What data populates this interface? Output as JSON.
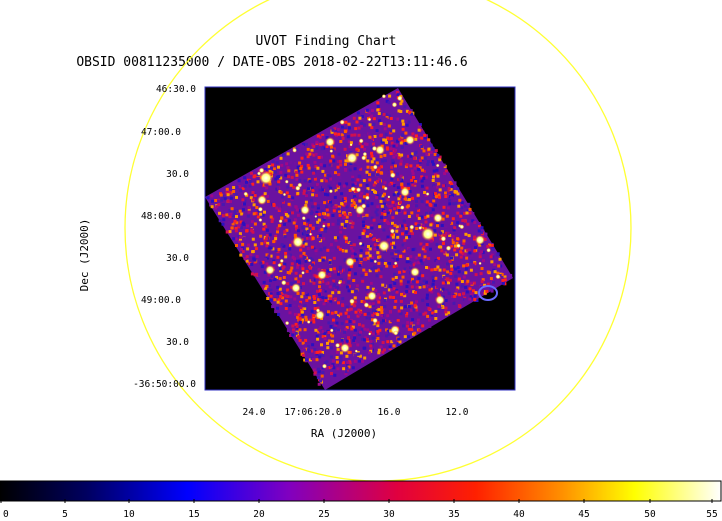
{
  "header": {
    "title": "UVOT Finding Chart",
    "subtitle": "OBSID 00811235000 / DATE-OBS 2018-02-22T13:11:46.6"
  },
  "axes": {
    "ra_label": "RA (J2000)",
    "dec_label": "Dec (J2000)",
    "dec_ticks": [
      "46:30.0",
      "47:00.0",
      "30.0",
      "48:00.0",
      "30.0",
      "49:00.0",
      "30.0",
      "-36:50:00.0"
    ],
    "ra_ticks": [
      "24.0",
      "17:06:20.0",
      "16.0",
      "12.0"
    ]
  },
  "colorbar": {
    "ticks": [
      "0",
      "5",
      "10",
      "15",
      "20",
      "25",
      "30",
      "35",
      "40",
      "45",
      "50",
      "55"
    ],
    "min": 0,
    "max": 55,
    "colors": [
      "#000000",
      "#0000ff",
      "#ff0000",
      "#ffff00",
      "#ffffff"
    ]
  },
  "colors": {
    "circle": "#ffff33",
    "frame": "#2020c0",
    "background": "#000000"
  }
}
